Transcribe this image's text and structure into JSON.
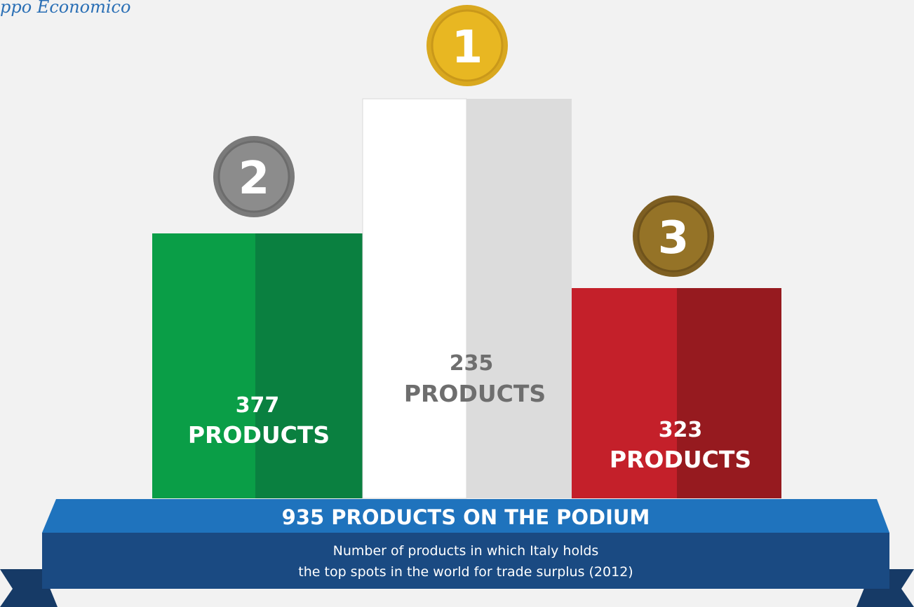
{
  "logo": "ppo Economico",
  "podium": [
    {
      "rank": "2",
      "count": 377,
      "unit": "PRODUCTS"
    },
    {
      "rank": "1",
      "count": 235,
      "unit": "PRODUCTS"
    },
    {
      "rank": "3",
      "count": 323,
      "unit": "PRODUCTS"
    }
  ],
  "banner": {
    "title": "935 PRODUCTS ON THE PODIUM",
    "subtitle": [
      "Number of products in which Italy holds",
      "the top spots in the world for trade surplus (2012)"
    ]
  }
}
